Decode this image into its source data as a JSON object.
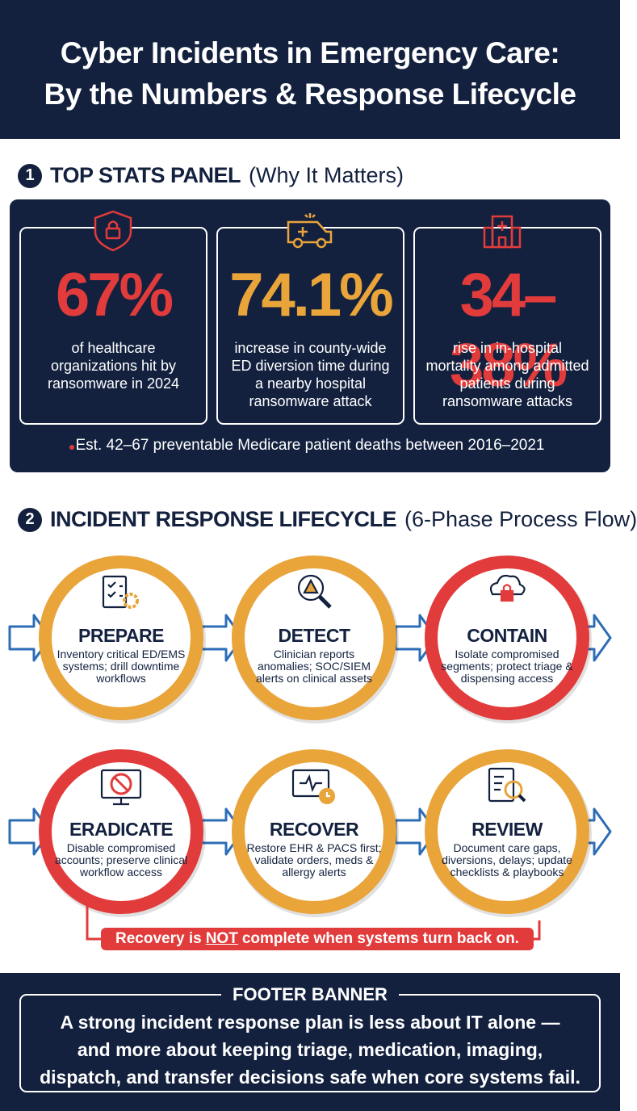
{
  "header": {
    "title_lines": [
      "Cyber Incidents in Emergency Care:",
      "By the Numbers & Response Lifecycle"
    ]
  },
  "stats_section": {
    "number": "1",
    "title": "TOP STATS PANEL",
    "subtitle": "(Why It Matters)",
    "stats": [
      {
        "value": "67%",
        "text": "of healthcare organizations hit by ransomware in 2024",
        "color": "#e23b3b"
      },
      {
        "value": "74.1%",
        "text": "increase in county-wide ED diversion time during a nearby hospital ransomware attack",
        "color": "#e9a43a"
      },
      {
        "value": "34–38%",
        "text": "rise in in-hospital mortality among admitted patients during ransomware attacks",
        "color": "#e23b3b"
      }
    ],
    "note": "Est. 42–67 preventable Medicare patient deaths between 2016–2021"
  },
  "lifecycle_section": {
    "number": "2",
    "title": "INCIDENT RESPONSE LIFECYCLE",
    "subtitle": "(6-Phase Process Flow)",
    "phases": [
      {
        "name": "PREPARE",
        "text": "Inventory critical ED/EMS systems; drill downtime workflows",
        "color": "#e9a43a"
      },
      {
        "name": "DETECT",
        "text": "Clinician reports anomalies; SOC/SIEM alerts on clinical assets",
        "color": "#e9a43a"
      },
      {
        "name": "CONTAIN",
        "text": "Isolate compromised segments; protect triage & dispensing access",
        "color": "#e23b3b"
      },
      {
        "name": "ERADICATE",
        "text": "Disable compromised accounts; preserve clinical workflow access",
        "color": "#e23b3b"
      },
      {
        "name": "RECOVER",
        "text": "Restore EHR & PACS first; validate orders, meds & allergy alerts",
        "color": "#e9a43a"
      },
      {
        "name": "REVIEW",
        "text": "Document care gaps, diversions, delays; update checklists & playbooks",
        "color": "#e9a43a"
      }
    ],
    "callout": {
      "before": "Recovery is",
      "emphasis": "NOT",
      "after": "complete when systems turn back on."
    }
  },
  "footer": {
    "label": "FOOTER BANNER",
    "lines": [
      "A strong incident response plan is less about IT alone —",
      "and more about keeping triage, medication, imaging,",
      "dispatch, and transfer decisions safe when core systems fail."
    ]
  }
}
